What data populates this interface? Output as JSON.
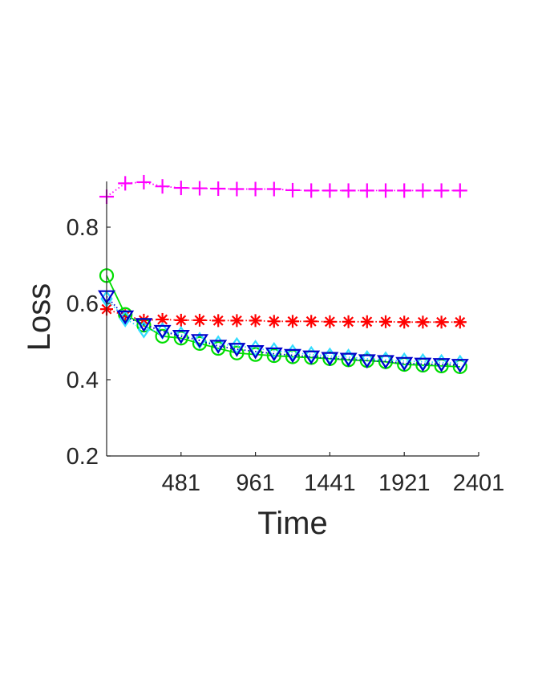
{
  "chart_data": {
    "type": "line",
    "xlabel": "Time",
    "ylabel": "Loss",
    "xlim": [
      1,
      2401
    ],
    "ylim": [
      0.2,
      0.92
    ],
    "xticks": [
      481,
      961,
      1441,
      1921,
      2401
    ],
    "xtick_labels": [
      "481",
      "961",
      "1441",
      "1921",
      "2401"
    ],
    "yticks": [
      0.2,
      0.4,
      0.6,
      0.8
    ],
    "ytick_labels": [
      "0.2",
      "0.4",
      "0.6",
      "0.8"
    ],
    "grid": false,
    "x": [
      1,
      121,
      241,
      361,
      481,
      601,
      721,
      841,
      961,
      1081,
      1201,
      1321,
      1441,
      1561,
      1681,
      1801,
      1921,
      2041,
      2161,
      2281
    ],
    "series": [
      {
        "marker": "plus",
        "color": "#ff00ff",
        "line_style": "dotted",
        "values": [
          0.88,
          0.915,
          0.918,
          0.907,
          0.903,
          0.902,
          0.901,
          0.9,
          0.9,
          0.9,
          0.897,
          0.896,
          0.896,
          0.896,
          0.896,
          0.896,
          0.896,
          0.896,
          0.896,
          0.896
        ]
      },
      {
        "marker": "asterisk",
        "color": "#ff0000",
        "line_style": "dotted",
        "values": [
          0.585,
          0.568,
          0.556,
          0.558,
          0.556,
          0.556,
          0.555,
          0.555,
          0.555,
          0.553,
          0.553,
          0.553,
          0.552,
          0.552,
          0.552,
          0.552,
          0.551,
          0.551,
          0.551,
          0.551
        ]
      },
      {
        "marker": "circle",
        "color": "#00dd00",
        "line_style": "solid",
        "values": [
          0.673,
          0.571,
          0.543,
          0.514,
          0.509,
          0.495,
          0.482,
          0.47,
          0.466,
          0.463,
          0.46,
          0.458,
          0.455,
          0.452,
          0.45,
          0.447,
          0.44,
          0.438,
          0.436,
          0.434
        ]
      },
      {
        "marker": "diamond",
        "color": "#33ddff",
        "line_style": "dotted",
        "values": [
          0.612,
          0.56,
          0.531,
          0.528,
          0.518,
          0.503,
          0.494,
          0.489,
          0.482,
          0.476,
          0.471,
          0.466,
          0.462,
          0.459,
          0.455,
          0.452,
          0.449,
          0.447,
          0.445,
          0.443
        ]
      },
      {
        "marker": "triangle-down",
        "color": "#0000cc",
        "line_style": "dotted",
        "values": [
          0.618,
          0.565,
          0.545,
          0.527,
          0.514,
          0.503,
          0.488,
          0.48,
          0.474,
          0.468,
          0.464,
          0.46,
          0.456,
          0.454,
          0.45,
          0.448,
          0.443,
          0.441,
          0.44,
          0.438
        ]
      }
    ]
  }
}
